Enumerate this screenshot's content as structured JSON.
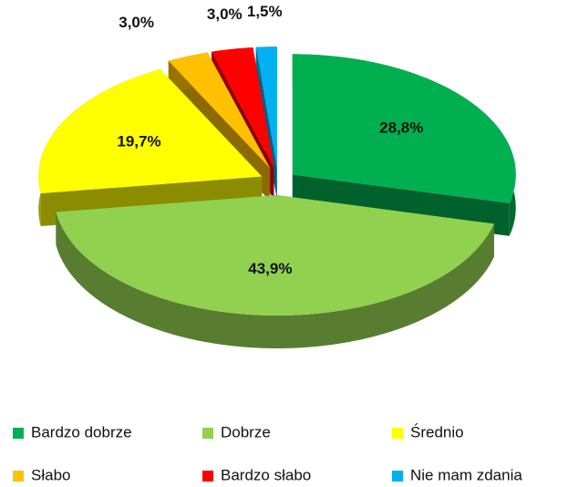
{
  "chart_data": {
    "type": "pie3d",
    "categories": [
      "Bardzo dobrze",
      "Dobrze",
      "Średnio",
      "Słabo",
      "Bardzo słabo",
      "Nie mam zdania"
    ],
    "values": [
      28.8,
      43.9,
      19.7,
      3.0,
      3.0,
      1.5
    ],
    "value_labels": [
      "28,8%",
      "43,9%",
      "19,7%",
      "3,0%",
      "3,0%",
      "1,5%"
    ],
    "colors": [
      "#00b050",
      "#92d050",
      "#ffff00",
      "#ffc000",
      "#ff0000",
      "#00b0f0"
    ],
    "legend": "bottom"
  }
}
